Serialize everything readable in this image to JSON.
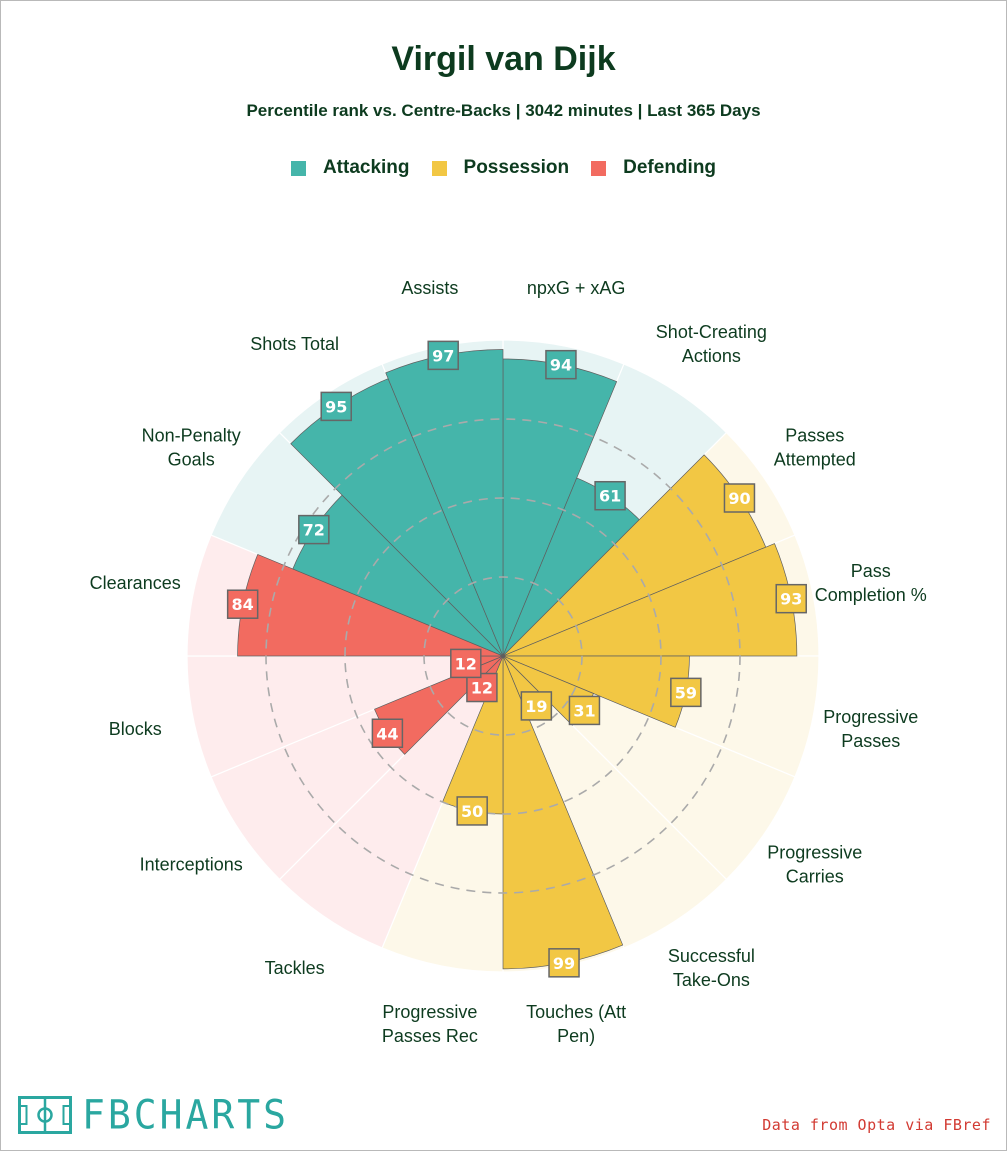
{
  "header": {
    "title": "Virgil van Dijk",
    "subtitle": "Percentile rank vs. Centre-Backs | 3042 minutes | Last 365 Days"
  },
  "legend": [
    {
      "label": "Attacking",
      "color": "#45b5aa"
    },
    {
      "label": "Possession",
      "color": "#f2c744"
    },
    {
      "label": "Defending",
      "color": "#f26b60"
    }
  ],
  "footer": {
    "logo_text": "FBCHARTS",
    "credit": "Data from Opta via FBref"
  },
  "colors": {
    "title": "#0d3b1f",
    "attacking_bg": "#e7f4f4",
    "possession_bg": "#fdf8e9",
    "defending_bg": "#feeced",
    "value_label_border": "#666666"
  },
  "chart_data": {
    "type": "radar",
    "scale": [
      0,
      100
    ],
    "gridlines": [
      25,
      50,
      75
    ],
    "categories": [
      "npxG + xAG",
      "Shot-Creating Actions",
      "Passes Attempted",
      "Pass Completion %",
      "Progressive Passes",
      "Progressive Carries",
      "Successful Take-Ons",
      "Touches (Att Pen)",
      "Progressive Passes Rec",
      "Tackles",
      "Interceptions",
      "Blocks",
      "Clearances",
      "Non-Penalty Goals",
      "Shots Total",
      "Assists"
    ],
    "label_lines": [
      [
        "npxG + xAG"
      ],
      [
        "Shot-Creating",
        "Actions"
      ],
      [
        "Passes",
        "Attempted"
      ],
      [
        "Pass",
        "Completion %"
      ],
      [
        "Progressive",
        "Passes"
      ],
      [
        "Progressive",
        "Carries"
      ],
      [
        "Successful",
        "Take-Ons"
      ],
      [
        "Touches (Att",
        "Pen)"
      ],
      [
        "Progressive",
        "Passes Rec"
      ],
      [
        "Tackles"
      ],
      [
        "Interceptions"
      ],
      [
        "Blocks"
      ],
      [
        "Clearances"
      ],
      [
        "Non-Penalty",
        "Goals"
      ],
      [
        "Shots Total"
      ],
      [
        "Assists"
      ]
    ],
    "groups": [
      "Attacking",
      "Attacking",
      "Possession",
      "Possession",
      "Possession",
      "Possession",
      "Possession",
      "Possession",
      "Possession",
      "Defending",
      "Defending",
      "Defending",
      "Defending",
      "Attacking",
      "Attacking",
      "Attacking"
    ],
    "values": [
      94,
      61,
      90,
      93,
      59,
      31,
      19,
      99,
      50,
      12,
      44,
      12,
      84,
      72,
      95,
      97
    ]
  }
}
